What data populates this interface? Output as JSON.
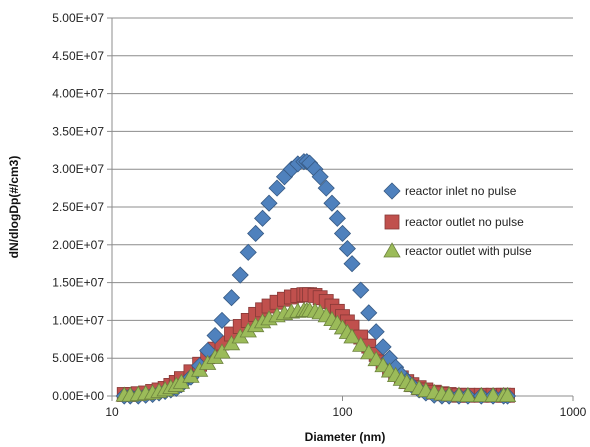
{
  "chart_data": {
    "type": "scatter",
    "title": "",
    "xlabel": "Diameter (nm)",
    "ylabel": "dN/dlogDp(#/cm3)",
    "x_scale": "log",
    "xlim": [
      10,
      1000
    ],
    "ylim": [
      0,
      50000000
    ],
    "x_ticks": [
      "10",
      "100",
      "1000"
    ],
    "y_ticks": [
      "0.00E+00",
      "5.00E+06",
      "1.00E+07",
      "1.50E+07",
      "2.00E+07",
      "2.50E+07",
      "3.00E+07",
      "3.50E+07",
      "4.00E+07",
      "4.50E+07",
      "5.00E+07"
    ],
    "grid": "horizontal",
    "legend_position": "right",
    "x": [
      11.3,
      12.0,
      13.0,
      14.0,
      15.0,
      16.0,
      17.0,
      18.0,
      19.0,
      20.0,
      22.0,
      24.0,
      26.0,
      28.0,
      30.0,
      33.0,
      36.0,
      39.0,
      42.0,
      45.0,
      48.0,
      52.0,
      56.0,
      60.0,
      64.0,
      68.0,
      70.0,
      72.0,
      76.0,
      80.0,
      85.0,
      90.0,
      95.0,
      100.0,
      105.0,
      110.0,
      120.0,
      130.0,
      140.0,
      150.0,
      160.0,
      170.0,
      180.0,
      190.0,
      200.0,
      215.0,
      230.0,
      250.0,
      270.0,
      290.0,
      320.0,
      350.0,
      400.0,
      450.0,
      500.0,
      520.0
    ],
    "series": [
      {
        "name": "reactor inlet no pulse",
        "color": "#4f81bd",
        "marker": "diamond",
        "values": [
          0,
          0,
          0,
          100000,
          200000,
          400000,
          600000,
          800000,
          1000000,
          1500000,
          2500000,
          4000000,
          6000000,
          8000000,
          10000000,
          13000000,
          16000000,
          19000000,
          21500000,
          23500000,
          25500000,
          27500000,
          29000000,
          30000000,
          30700000,
          31000000,
          31000000,
          30800000,
          30000000,
          29000000,
          27500000,
          25500000,
          23500000,
          21500000,
          19500000,
          17500000,
          14000000,
          11000000,
          8500000,
          6500000,
          5000000,
          3800000,
          2800000,
          2000000,
          1400000,
          800000,
          400000,
          100000,
          0,
          0,
          0,
          0,
          0,
          0,
          0,
          0
        ]
      },
      {
        "name": "reactor outlet no pulse",
        "color": "#c0504d",
        "marker": "square",
        "values": [
          200000,
          200000,
          300000,
          400000,
          600000,
          800000,
          1000000,
          1400000,
          1800000,
          2300000,
          3200000,
          4200000,
          5200000,
          6200000,
          7000000,
          8200000,
          9200000,
          10000000,
          10800000,
          11400000,
          11900000,
          12400000,
          12800000,
          13100000,
          13300000,
          13400000,
          13400000,
          13400000,
          13300000,
          13000000,
          12500000,
          11900000,
          11200000,
          10500000,
          9800000,
          9100000,
          7800000,
          6600000,
          5500000,
          4500000,
          3700000,
          3000000,
          2400000,
          1900000,
          1500000,
          1100000,
          800000,
          500000,
          300000,
          200000,
          100000,
          100000,
          100000,
          100000,
          100000,
          100000
        ]
      },
      {
        "name": "reactor outlet with pulse",
        "color": "#9bbb59",
        "marker": "triangle",
        "values": [
          100000,
          100000,
          200000,
          300000,
          400000,
          600000,
          800000,
          1100000,
          1400000,
          1800000,
          2600000,
          3400000,
          4300000,
          5100000,
          5800000,
          6900000,
          7800000,
          8600000,
          9300000,
          9800000,
          10200000,
          10600000,
          10900000,
          11100000,
          11200000,
          11300000,
          11300000,
          11300000,
          11200000,
          11000000,
          10600000,
          10100000,
          9600000,
          9000000,
          8400000,
          7800000,
          6700000,
          5700000,
          4800000,
          4000000,
          3300000,
          2700000,
          2200000,
          1800000,
          1400000,
          1000000,
          700000,
          450000,
          250000,
          150000,
          100000,
          50000,
          50000,
          50000,
          50000,
          50000
        ]
      }
    ]
  }
}
